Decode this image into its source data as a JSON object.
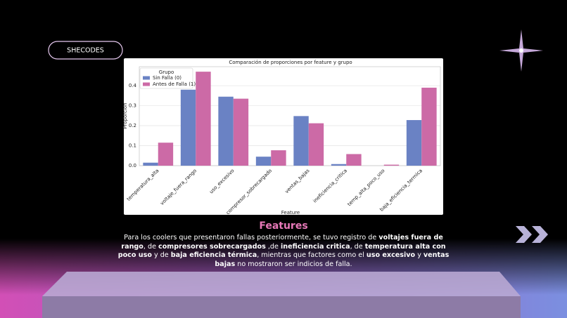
{
  "brand": "SHECODES",
  "chart_data": {
    "type": "bar",
    "title": "Comparación de proporciones por feature y grupo",
    "xlabel": "Feature",
    "ylabel": "Proporción",
    "legend_title": "Grupo",
    "legend": "upper left",
    "categories": [
      "temperatura_alta",
      "voltaje_fuera_rango",
      "uso_excesivo",
      "compresor_sobrecargado",
      "ventas_bajas",
      "ineficiencia_critica",
      "temp_alta_poco_uso",
      "baja_eficiencia_termica"
    ],
    "series": [
      {
        "name": "Sin Falla (0)",
        "color": "#6a82c4",
        "values": [
          0.015,
          0.38,
          0.345,
          0.045,
          0.248,
          0.008,
          0.0,
          0.228
        ]
      },
      {
        "name": "Antes de Falla (1)",
        "color": "#cc6aa6",
        "values": [
          0.115,
          0.47,
          0.335,
          0.077,
          0.212,
          0.058,
          0.005,
          0.39
        ]
      }
    ],
    "ylim": [
      0,
      0.495
    ],
    "yticks": [
      {
        "value": 0,
        "label": "0.0"
      },
      0.1,
      0.2,
      0.3,
      0.4
    ],
    "grid": true
  },
  "heading": "Features",
  "paragraph": [
    {
      "text": "Para los coolers que presentaron fallas posteriormente, se tuvo registro de ",
      "bold": false
    },
    {
      "text": "voltajes fuera de rango",
      "bold": true
    },
    {
      "text": ", de ",
      "bold": false
    },
    {
      "text": "compresores sobrecargados",
      "bold": true
    },
    {
      "text": " ,de ",
      "bold": false
    },
    {
      "text": "ineficiencia critica",
      "bold": true
    },
    {
      "text": ", de ",
      "bold": false
    },
    {
      "text": "temperatura alta con poco uso",
      "bold": true
    },
    {
      "text": " y de ",
      "bold": false
    },
    {
      "text": "baja eficiencia térmica",
      "bold": true
    },
    {
      "text": ", mientras que factores como el ",
      "bold": false
    },
    {
      "text": "uso excesivo",
      "bold": true
    },
    {
      "text": " y ",
      "bold": false
    },
    {
      "text": "ventas bajas",
      "bold": true
    },
    {
      "text": " no mostraron ser indicios de falla.",
      "bold": false
    }
  ]
}
